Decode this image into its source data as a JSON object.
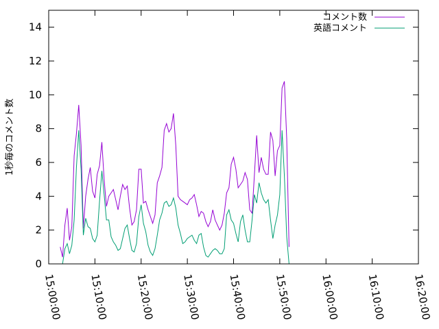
{
  "chart_data": {
    "type": "line",
    "title": "",
    "xlabel": "",
    "ylabel": "1秒毎のコメント数",
    "xlim": [
      "15:00:00",
      "16:20:00"
    ],
    "ylim": [
      0,
      15
    ],
    "x_ticks": [
      "15:00:00",
      "15:10:00",
      "15:20:00",
      "15:30:00",
      "15:40:00",
      "15:50:00",
      "16:00:00",
      "16:10:00",
      "16:20:00"
    ],
    "y_ticks": [
      0,
      2,
      4,
      6,
      8,
      10,
      12,
      14
    ],
    "grid": false,
    "legend_position": "top-right",
    "series": [
      {
        "name": "コメント数",
        "color": "#9400d3",
        "points": [
          [
            "15:02:30",
            1.0
          ],
          [
            "15:03:00",
            0.4
          ],
          [
            "15:03:30",
            2.3
          ],
          [
            "15:04:00",
            3.3
          ],
          [
            "15:04:30",
            1.4
          ],
          [
            "15:05:00",
            2.2
          ],
          [
            "15:05:30",
            6.4
          ],
          [
            "15:06:00",
            7.7
          ],
          [
            "15:06:30",
            9.4
          ],
          [
            "15:07:00",
            7.0
          ],
          [
            "15:07:30",
            2.1
          ],
          [
            "15:08:00",
            4.0
          ],
          [
            "15:08:30",
            5.0
          ],
          [
            "15:09:00",
            5.7
          ],
          [
            "15:09:30",
            4.3
          ],
          [
            "15:10:00",
            3.9
          ],
          [
            "15:10:30",
            5.3
          ],
          [
            "15:11:00",
            5.8
          ],
          [
            "15:11:30",
            7.2
          ],
          [
            "15:12:00",
            5.0
          ],
          [
            "15:12:30",
            3.4
          ],
          [
            "15:13:00",
            4.0
          ],
          [
            "15:13:30",
            4.2
          ],
          [
            "15:14:00",
            4.4
          ],
          [
            "15:14:30",
            3.8
          ],
          [
            "15:15:00",
            3.2
          ],
          [
            "15:15:30",
            4.0
          ],
          [
            "15:16:00",
            4.7
          ],
          [
            "15:16:30",
            4.4
          ],
          [
            "15:17:00",
            4.6
          ],
          [
            "15:17:30",
            3.3
          ],
          [
            "15:18:00",
            2.3
          ],
          [
            "15:18:30",
            2.5
          ],
          [
            "15:19:00",
            3.2
          ],
          [
            "15:19:30",
            5.6
          ],
          [
            "15:20:00",
            5.6
          ],
          [
            "15:20:30",
            3.6
          ],
          [
            "15:21:00",
            3.7
          ],
          [
            "15:21:30",
            3.2
          ],
          [
            "15:22:00",
            2.8
          ],
          [
            "15:22:30",
            2.4
          ],
          [
            "15:23:00",
            2.9
          ],
          [
            "15:23:30",
            4.8
          ],
          [
            "15:24:00",
            5.2
          ],
          [
            "15:24:30",
            5.7
          ],
          [
            "15:25:00",
            7.9
          ],
          [
            "15:25:30",
            8.3
          ],
          [
            "15:26:00",
            7.8
          ],
          [
            "15:26:30",
            8.0
          ],
          [
            "15:27:00",
            8.9
          ],
          [
            "15:27:30",
            7.0
          ],
          [
            "15:28:00",
            4.0
          ],
          [
            "15:28:30",
            3.8
          ],
          [
            "15:29:00",
            3.7
          ],
          [
            "15:29:30",
            3.6
          ],
          [
            "15:30:00",
            3.5
          ],
          [
            "15:30:30",
            3.8
          ],
          [
            "15:31:00",
            3.9
          ],
          [
            "15:31:30",
            4.1
          ],
          [
            "15:32:00",
            3.5
          ],
          [
            "15:32:30",
            2.8
          ],
          [
            "15:33:00",
            3.1
          ],
          [
            "15:33:30",
            3.0
          ],
          [
            "15:34:00",
            2.5
          ],
          [
            "15:34:30",
            2.2
          ],
          [
            "15:35:00",
            2.5
          ],
          [
            "15:35:30",
            3.2
          ],
          [
            "15:36:00",
            2.6
          ],
          [
            "15:36:30",
            2.3
          ],
          [
            "15:37:00",
            2.0
          ],
          [
            "15:37:30",
            2.3
          ],
          [
            "15:38:00",
            3.0
          ],
          [
            "15:38:30",
            4.2
          ],
          [
            "15:39:00",
            4.5
          ],
          [
            "15:39:30",
            5.9
          ],
          [
            "15:40:00",
            6.3
          ],
          [
            "15:40:30",
            5.6
          ],
          [
            "15:41:00",
            4.5
          ],
          [
            "15:41:30",
            4.7
          ],
          [
            "15:42:00",
            4.9
          ],
          [
            "15:42:30",
            5.4
          ],
          [
            "15:43:00",
            5.0
          ],
          [
            "15:43:30",
            3.2
          ],
          [
            "15:44:00",
            3.0
          ],
          [
            "15:44:30",
            5.2
          ],
          [
            "15:45:00",
            7.6
          ],
          [
            "15:45:30",
            5.4
          ],
          [
            "15:46:00",
            6.3
          ],
          [
            "15:46:30",
            5.6
          ],
          [
            "15:47:00",
            5.3
          ],
          [
            "15:47:30",
            5.3
          ],
          [
            "15:48:00",
            7.8
          ],
          [
            "15:48:30",
            7.3
          ],
          [
            "15:49:00",
            5.2
          ],
          [
            "15:49:30",
            6.7
          ],
          [
            "15:50:00",
            7.0
          ],
          [
            "15:50:30",
            10.4
          ],
          [
            "15:51:00",
            10.8
          ],
          [
            "15:51:30",
            7.4
          ],
          [
            "15:52:00",
            1.0
          ]
        ]
      },
      {
        "name": "英語コメント",
        "color": "#009e73",
        "points": [
          [
            "15:02:30",
            0.0
          ],
          [
            "15:03:00",
            0.0
          ],
          [
            "15:03:30",
            0.9
          ],
          [
            "15:04:00",
            1.2
          ],
          [
            "15:04:30",
            0.6
          ],
          [
            "15:05:00",
            1.1
          ],
          [
            "15:05:30",
            2.6
          ],
          [
            "15:06:00",
            5.7
          ],
          [
            "15:06:30",
            7.9
          ],
          [
            "15:07:00",
            5.6
          ],
          [
            "15:07:30",
            1.7
          ],
          [
            "15:08:00",
            2.7
          ],
          [
            "15:08:30",
            2.2
          ],
          [
            "15:09:00",
            2.1
          ],
          [
            "15:09:30",
            1.5
          ],
          [
            "15:10:00",
            1.3
          ],
          [
            "15:10:30",
            1.7
          ],
          [
            "15:11:00",
            3.7
          ],
          [
            "15:11:30",
            5.5
          ],
          [
            "15:12:00",
            4.1
          ],
          [
            "15:12:30",
            2.6
          ],
          [
            "15:13:00",
            2.6
          ],
          [
            "15:13:30",
            1.6
          ],
          [
            "15:14:00",
            1.3
          ],
          [
            "15:14:30",
            1.1
          ],
          [
            "15:15:00",
            0.8
          ],
          [
            "15:15:30",
            0.9
          ],
          [
            "15:16:00",
            1.5
          ],
          [
            "15:16:30",
            2.1
          ],
          [
            "15:17:00",
            2.3
          ],
          [
            "15:17:30",
            1.5
          ],
          [
            "15:18:00",
            0.8
          ],
          [
            "15:18:30",
            0.7
          ],
          [
            "15:19:00",
            1.2
          ],
          [
            "15:19:30",
            2.8
          ],
          [
            "15:20:00",
            3.5
          ],
          [
            "15:20:30",
            2.4
          ],
          [
            "15:21:00",
            1.9
          ],
          [
            "15:21:30",
            1.1
          ],
          [
            "15:22:00",
            0.7
          ],
          [
            "15:22:30",
            0.5
          ],
          [
            "15:23:00",
            0.9
          ],
          [
            "15:23:30",
            1.7
          ],
          [
            "15:24:00",
            2.6
          ],
          [
            "15:24:30",
            3.0
          ],
          [
            "15:25:00",
            3.6
          ],
          [
            "15:25:30",
            3.7
          ],
          [
            "15:26:00",
            3.4
          ],
          [
            "15:26:30",
            3.5
          ],
          [
            "15:27:00",
            3.9
          ],
          [
            "15:27:30",
            3.3
          ],
          [
            "15:28:00",
            2.3
          ],
          [
            "15:28:30",
            1.8
          ],
          [
            "15:29:00",
            1.2
          ],
          [
            "15:29:30",
            1.3
          ],
          [
            "15:30:00",
            1.5
          ],
          [
            "15:30:30",
            1.6
          ],
          [
            "15:31:00",
            1.7
          ],
          [
            "15:31:30",
            1.4
          ],
          [
            "15:32:00",
            1.2
          ],
          [
            "15:32:30",
            1.7
          ],
          [
            "15:33:00",
            1.8
          ],
          [
            "15:33:30",
            1.0
          ],
          [
            "15:34:00",
            0.5
          ],
          [
            "15:34:30",
            0.4
          ],
          [
            "15:35:00",
            0.6
          ],
          [
            "15:35:30",
            0.8
          ],
          [
            "15:36:00",
            0.9
          ],
          [
            "15:36:30",
            0.8
          ],
          [
            "15:37:00",
            0.6
          ],
          [
            "15:37:30",
            0.6
          ],
          [
            "15:38:00",
            0.9
          ],
          [
            "15:38:30",
            2.9
          ],
          [
            "15:39:00",
            3.2
          ],
          [
            "15:39:30",
            2.6
          ],
          [
            "15:40:00",
            2.4
          ],
          [
            "15:40:30",
            1.8
          ],
          [
            "15:41:00",
            1.3
          ],
          [
            "15:41:30",
            2.5
          ],
          [
            "15:42:00",
            2.9
          ],
          [
            "15:42:30",
            2.0
          ],
          [
            "15:43:00",
            1.3
          ],
          [
            "15:43:30",
            1.3
          ],
          [
            "15:44:00",
            2.6
          ],
          [
            "15:44:30",
            4.1
          ],
          [
            "15:45:00",
            3.6
          ],
          [
            "15:45:30",
            4.8
          ],
          [
            "15:46:00",
            4.2
          ],
          [
            "15:46:30",
            3.8
          ],
          [
            "15:47:00",
            3.6
          ],
          [
            "15:47:30",
            3.8
          ],
          [
            "15:48:00",
            2.6
          ],
          [
            "15:48:30",
            1.5
          ],
          [
            "15:49:00",
            2.3
          ],
          [
            "15:49:30",
            2.9
          ],
          [
            "15:50:00",
            4.1
          ],
          [
            "15:50:30",
            7.9
          ],
          [
            "15:51:00",
            5.2
          ],
          [
            "15:51:30",
            1.6
          ],
          [
            "15:52:00",
            0.0
          ]
        ]
      }
    ]
  }
}
